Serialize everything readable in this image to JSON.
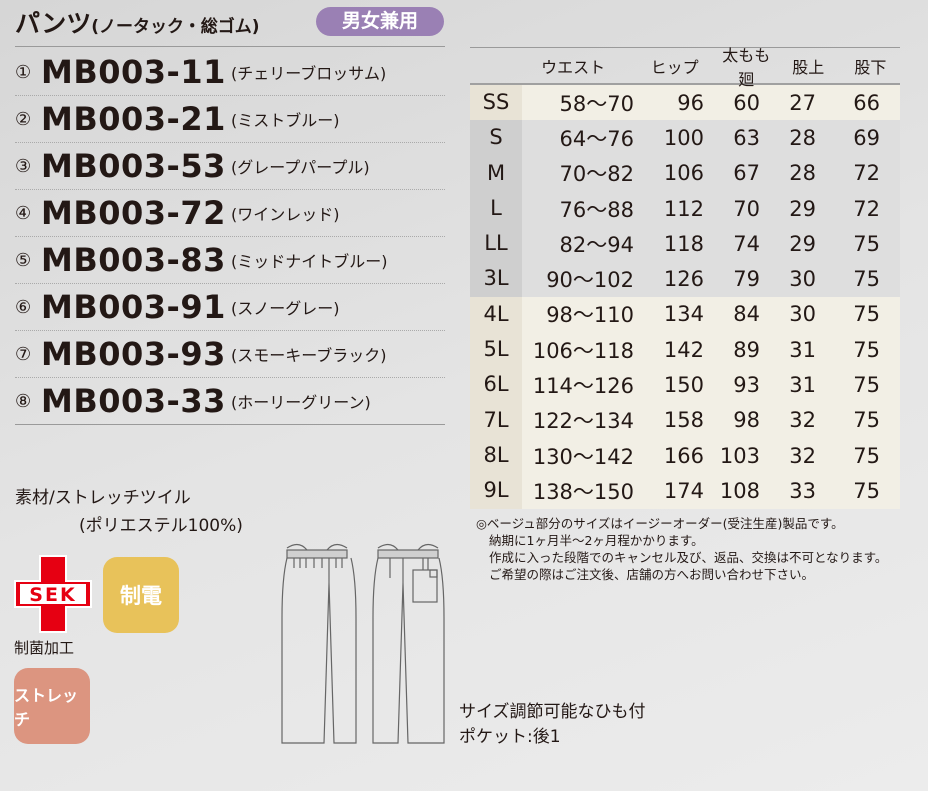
{
  "header": {
    "title": "パンツ",
    "subtitle": "(ノータック・総ゴム)",
    "gender_badge": "男女兼用",
    "badge_color": "#9a80b4"
  },
  "models": [
    {
      "num": "①",
      "code": "MB003-11",
      "color": "(チェリーブロッサム)"
    },
    {
      "num": "②",
      "code": "MB003-21",
      "color": "(ミストブルー)"
    },
    {
      "num": "③",
      "code": "MB003-53",
      "color": "(グレープパープル)"
    },
    {
      "num": "④",
      "code": "MB003-72",
      "color": "(ワインレッド)"
    },
    {
      "num": "⑤",
      "code": "MB003-83",
      "color": "(ミッドナイトブルー)"
    },
    {
      "num": "⑥",
      "code": "MB003-91",
      "color": "(スノーグレー)"
    },
    {
      "num": "⑦",
      "code": "MB003-93",
      "color": "(スモーキーブラック)"
    },
    {
      "num": "⑧",
      "code": "MB003-33",
      "color": "(ホーリーグリーン)"
    }
  ],
  "size_table": {
    "headers": [
      "",
      "ウエスト",
      "ヒップ",
      "太もも廻",
      "股上",
      "股下"
    ],
    "rows": [
      {
        "size": "SS",
        "waist": "58〜70",
        "hip": "96",
        "thigh": "60",
        "rise": "27",
        "inseam": "66",
        "easy_order": true
      },
      {
        "size": "S",
        "waist": "64〜76",
        "hip": "100",
        "thigh": "63",
        "rise": "28",
        "inseam": "69",
        "easy_order": false
      },
      {
        "size": "M",
        "waist": "70〜82",
        "hip": "106",
        "thigh": "67",
        "rise": "28",
        "inseam": "72",
        "easy_order": false
      },
      {
        "size": "L",
        "waist": "76〜88",
        "hip": "112",
        "thigh": "70",
        "rise": "29",
        "inseam": "72",
        "easy_order": false
      },
      {
        "size": "LL",
        "waist": "82〜94",
        "hip": "118",
        "thigh": "74",
        "rise": "29",
        "inseam": "75",
        "easy_order": false
      },
      {
        "size": "3L",
        "waist": "90〜102",
        "hip": "126",
        "thigh": "79",
        "rise": "30",
        "inseam": "75",
        "easy_order": false
      },
      {
        "size": "4L",
        "waist": "98〜110",
        "hip": "134",
        "thigh": "84",
        "rise": "30",
        "inseam": "75",
        "easy_order": true
      },
      {
        "size": "5L",
        "waist": "106〜118",
        "hip": "142",
        "thigh": "89",
        "rise": "31",
        "inseam": "75",
        "easy_order": true
      },
      {
        "size": "6L",
        "waist": "114〜126",
        "hip": "150",
        "thigh": "93",
        "rise": "31",
        "inseam": "75",
        "easy_order": true
      },
      {
        "size": "7L",
        "waist": "122〜134",
        "hip": "158",
        "thigh": "98",
        "rise": "32",
        "inseam": "75",
        "easy_order": true
      },
      {
        "size": "8L",
        "waist": "130〜142",
        "hip": "166",
        "thigh": "103",
        "rise": "32",
        "inseam": "75",
        "easy_order": true
      },
      {
        "size": "9L",
        "waist": "138〜150",
        "hip": "174",
        "thigh": "108",
        "rise": "33",
        "inseam": "75",
        "easy_order": true
      }
    ]
  },
  "notes": [
    "◎ベージュ部分のサイズはイージーオーダー(受注生産)製品です。",
    "納期に1ヶ月半〜2ヶ月程かかります。",
    "作成に入った段階でのキャンセル及び、返品、交換は不可となります。",
    "ご希望の際はご注文後、店舗の方へお問い合わせ下さい。"
  ],
  "material": {
    "line1": "素材/ストレッチツイル",
    "line2": "(ポリエステル100%)"
  },
  "badges": {
    "sek_logo": "SEK",
    "sek_label": "制菌加工",
    "antistatic": "制電",
    "antistatic_color": "#e8c25a",
    "stretch": "ストレッチ",
    "stretch_color": "#dc9580"
  },
  "features": [
    "サイズ調節可能なひも付",
    "ポケット:後1"
  ]
}
